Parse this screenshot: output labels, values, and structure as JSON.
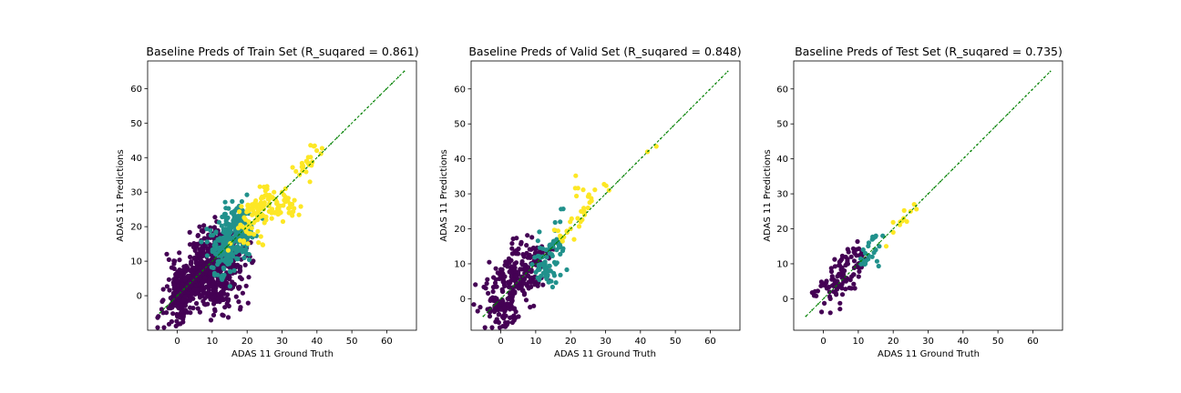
{
  "figure": {
    "colors": {
      "low": "#440154",
      "mid": "#21918c",
      "high": "#fde725",
      "identity_line": "#008000",
      "frame": "#000000"
    }
  },
  "chart_data": [
    {
      "type": "scatter",
      "title": "Baseline Preds of Train Set (R_suqared = 0.861)",
      "xlabel": "ADAS 11 Ground Truth",
      "ylabel": "ADAS 11 Predictions",
      "xlim": [
        -8.5,
        68.5
      ],
      "ylim": [
        -10,
        68
      ],
      "xticks": [
        0,
        10,
        20,
        30,
        40,
        50,
        60
      ],
      "yticks": [
        0,
        10,
        20,
        30,
        40,
        50,
        60
      ],
      "identity_line": {
        "from": [
          -5,
          -5
        ],
        "to": [
          65,
          65
        ]
      },
      "series": [
        {
          "class": "low",
          "x": [
            0,
            2,
            4,
            6,
            8,
            10,
            12,
            14,
            1,
            3,
            5,
            7,
            9,
            11,
            13,
            3,
            6,
            9,
            12,
            0,
            5,
            10
          ],
          "y": [
            -6,
            0,
            2,
            6,
            8,
            10,
            12,
            15,
            3,
            1,
            5,
            9,
            7,
            10,
            14,
            8,
            2,
            12,
            9,
            -2,
            11,
            4
          ],
          "count": 900
        },
        {
          "class": "mid",
          "x": [
            12,
            13,
            14,
            15,
            16,
            17,
            18,
            13,
            15,
            17,
            14,
            16,
            18,
            12,
            15,
            17
          ],
          "y": [
            10,
            14,
            16,
            18,
            20,
            21,
            22,
            12,
            16,
            19,
            13,
            14,
            18,
            16,
            20,
            23
          ],
          "count": 330
        },
        {
          "class": "high",
          "x": [
            18,
            20,
            22,
            24,
            26,
            28,
            30,
            32,
            34,
            36,
            38,
            21,
            23,
            25,
            27,
            29,
            31,
            35,
            37
          ],
          "y": [
            16,
            20,
            24,
            26,
            28,
            24,
            30,
            24,
            36,
            37,
            33,
            18,
            22,
            27,
            24,
            26,
            31,
            35,
            39
          ],
          "count": 160
        }
      ]
    },
    {
      "type": "scatter",
      "title": "Baseline Preds of Valid Set (R_suqared = 0.848)",
      "xlabel": "ADAS 11 Ground Truth",
      "ylabel": "ADAS 11 Predictions",
      "xlim": [
        -8.5,
        68.5
      ],
      "ylim": [
        -9,
        68
      ],
      "xticks": [
        0,
        10,
        20,
        30,
        40,
        50,
        60
      ],
      "yticks": [
        0,
        10,
        20,
        30,
        40,
        50,
        60
      ],
      "identity_line": {
        "from": [
          -5,
          -5
        ],
        "to": [
          65,
          65
        ]
      },
      "series": [
        {
          "class": "low",
          "x": [
            0,
            2,
            4,
            6,
            8,
            10,
            12,
            1,
            3,
            5,
            7,
            9,
            11,
            4,
            8
          ],
          "y": [
            -3,
            0,
            2,
            5,
            8,
            10,
            12,
            4,
            -2,
            7,
            9,
            6,
            11,
            10,
            3
          ],
          "count": 300
        },
        {
          "class": "mid",
          "x": [
            11,
            12,
            13,
            14,
            15,
            16,
            17,
            12,
            14,
            16,
            17
          ],
          "y": [
            9,
            12,
            14,
            15,
            16,
            17,
            22,
            10,
            13,
            14,
            16
          ],
          "count": 80
        },
        {
          "class": "high",
          "x": [
            17,
            19,
            20,
            21,
            22,
            23,
            24,
            25,
            26,
            31,
            42
          ],
          "y": [
            18,
            19,
            20,
            17,
            23,
            25,
            24,
            26,
            28,
            31,
            42
          ],
          "count": 40
        }
      ]
    },
    {
      "type": "scatter",
      "title": "Baseline Preds of Test Set (R_suqared = 0.735)",
      "xlabel": "ADAS 11 Ground Truth",
      "ylabel": "ADAS 11 Predictions",
      "xlim": [
        -8.5,
        68.5
      ],
      "ylim": [
        -9,
        68
      ],
      "xticks": [
        0,
        10,
        20,
        30,
        40,
        50,
        60
      ],
      "yticks": [
        0,
        10,
        20,
        30,
        40,
        50,
        60
      ],
      "identity_line": {
        "from": [
          -5,
          -5
        ],
        "to": [
          65,
          65
        ]
      },
      "series": [
        {
          "class": "low",
          "x": [
            1,
            2,
            3,
            4,
            5,
            6,
            7,
            8,
            9,
            10,
            11,
            2,
            4,
            6,
            8,
            10
          ],
          "y": [
            3,
            -4,
            2,
            5,
            7,
            8,
            10,
            12,
            13,
            9,
            11,
            0,
            4,
            6,
            3,
            10
          ],
          "count": 110
        },
        {
          "class": "mid",
          "x": [
            11,
            12,
            13,
            14,
            15,
            17,
            12,
            14,
            16
          ],
          "y": [
            10,
            13,
            16,
            12,
            14,
            18,
            10,
            17,
            15
          ],
          "count": 25
        },
        {
          "class": "high",
          "x": [
            18,
            20,
            22,
            23,
            25,
            26
          ],
          "y": [
            15,
            19,
            22,
            23,
            25,
            27
          ],
          "count": 12
        }
      ]
    }
  ]
}
